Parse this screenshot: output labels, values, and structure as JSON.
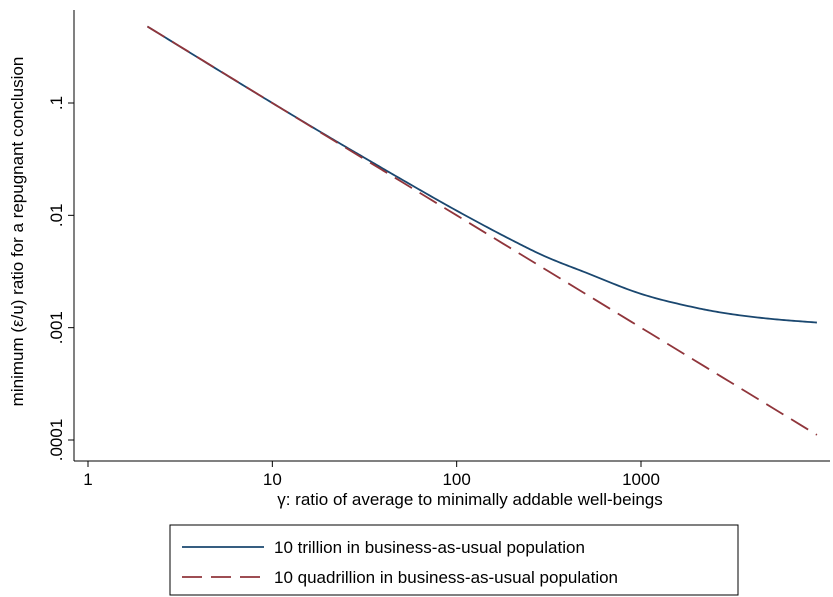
{
  "chart_data": {
    "type": "line",
    "title": "",
    "xlabel": "γ: ratio of average to minimally addable well-beings",
    "ylabel": "minimum (ε/u) ratio for a repugnant conclusion",
    "xscale": "log",
    "yscale": "log",
    "xlim": [
      1,
      9000
    ],
    "ylim": [
      7e-05,
      0.9
    ],
    "xticks": [
      {
        "value": 1,
        "label": "1"
      },
      {
        "value": 10,
        "label": "10"
      },
      {
        "value": 100,
        "label": "100"
      },
      {
        "value": 1000,
        "label": "1000"
      }
    ],
    "yticks": [
      {
        "value": 0.1,
        "label": ".1"
      },
      {
        "value": 0.01,
        "label": ".01"
      },
      {
        "value": 0.001,
        "label": ".001"
      },
      {
        "value": 0.0001,
        "label": ".0001"
      }
    ],
    "grid": false,
    "legend_position": "bottom",
    "series": [
      {
        "name": "10 trillion in business-as-usual population",
        "color": "#1a476f",
        "dash": "solid",
        "x": [
          2.1,
          5,
          10,
          20,
          30,
          50,
          100,
          200,
          300,
          500,
          1000,
          2000,
          3000,
          5000,
          9000
        ],
        "y": [
          0.48,
          0.2,
          0.1,
          0.0505,
          0.0342,
          0.021,
          0.011,
          0.006,
          0.00433,
          0.0031,
          0.002,
          0.0015,
          0.00133,
          0.0012,
          0.00111
        ]
      },
      {
        "name": "10 quadrillion in business-as-usual population",
        "color": "#90353b",
        "dash": "long-dash",
        "x": [
          2.1,
          10,
          100,
          1000,
          9000
        ],
        "y": [
          0.48,
          0.1,
          0.01,
          0.001,
          0.000111
        ]
      }
    ]
  }
}
